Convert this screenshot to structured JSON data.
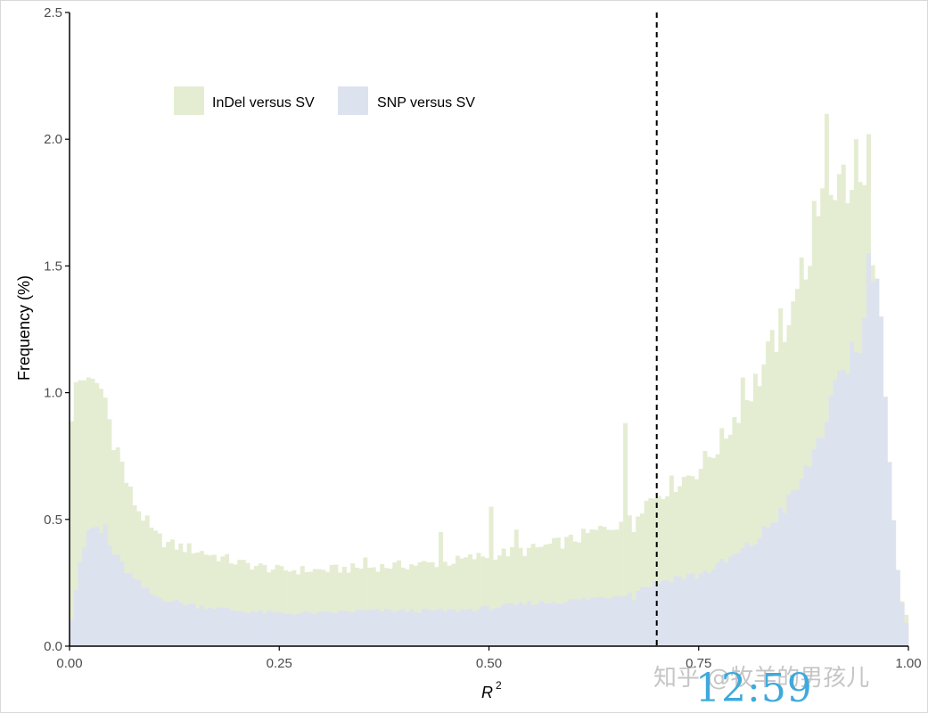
{
  "chart_data": {
    "type": "bar",
    "subtype": "overlaid-histogram",
    "title": "",
    "xlabel": "R",
    "xlabel_superscript": "2",
    "ylabel": "Frequency (%)",
    "xlim": [
      0,
      1
    ],
    "ylim": [
      0,
      2.5
    ],
    "xticks": [
      "0.00",
      "0.25",
      "0.50",
      "0.75",
      "1.00"
    ],
    "yticks": [
      "0.0",
      "0.5",
      "1.0",
      "1.5",
      "2.0",
      "2.5"
    ],
    "xtick_values": [
      0,
      0.25,
      0.5,
      0.75,
      1.0
    ],
    "ytick_values": [
      0,
      0.5,
      1.0,
      1.5,
      2.0,
      2.5
    ],
    "bin_width": 0.005,
    "cutoff_line": {
      "x": 0.7,
      "style": "dashed"
    },
    "grid": false,
    "legend_position": "top-left",
    "series": [
      {
        "name": "InDel versus SV",
        "color": "#e4edd2",
        "anchors": [
          [
            0.0,
            0.85
          ],
          [
            0.005,
            1.0
          ],
          [
            0.01,
            1.02
          ],
          [
            0.015,
            1.06
          ],
          [
            0.02,
            1.05
          ],
          [
            0.03,
            1.0
          ],
          [
            0.04,
            1.02
          ],
          [
            0.05,
            0.85
          ],
          [
            0.06,
            0.75
          ],
          [
            0.07,
            0.62
          ],
          [
            0.08,
            0.55
          ],
          [
            0.09,
            0.5
          ],
          [
            0.1,
            0.44
          ],
          [
            0.12,
            0.4
          ],
          [
            0.15,
            0.38
          ],
          [
            0.2,
            0.33
          ],
          [
            0.25,
            0.3
          ],
          [
            0.3,
            0.3
          ],
          [
            0.35,
            0.31
          ],
          [
            0.4,
            0.32
          ],
          [
            0.45,
            0.33
          ],
          [
            0.5,
            0.36
          ],
          [
            0.55,
            0.38
          ],
          [
            0.6,
            0.42
          ],
          [
            0.65,
            0.48
          ],
          [
            0.7,
            0.6
          ],
          [
            0.72,
            0.64
          ],
          [
            0.75,
            0.7
          ],
          [
            0.78,
            0.82
          ],
          [
            0.8,
            0.95
          ],
          [
            0.82,
            1.05
          ],
          [
            0.84,
            1.2
          ],
          [
            0.86,
            1.35
          ],
          [
            0.88,
            1.55
          ],
          [
            0.9,
            1.85
          ],
          [
            0.92,
            1.8
          ],
          [
            0.94,
            1.82
          ],
          [
            0.95,
            1.75
          ],
          [
            0.96,
            1.35
          ],
          [
            0.97,
            0.8
          ],
          [
            0.98,
            0.35
          ],
          [
            0.99,
            0.2
          ],
          [
            1.0,
            0.1
          ]
        ],
        "spikes": [
          [
            0.02,
            1.06
          ],
          [
            0.35,
            0.35
          ],
          [
            0.44,
            0.45
          ],
          [
            0.5,
            0.55
          ],
          [
            0.53,
            0.46
          ],
          [
            0.66,
            0.88
          ],
          [
            0.67,
            0.45
          ],
          [
            0.67,
            0.37
          ],
          [
            0.8,
            1.06
          ],
          [
            0.85,
            1.2
          ],
          [
            0.86,
            1.36
          ],
          [
            0.88,
            1.5
          ],
          [
            0.9,
            1.63
          ],
          [
            0.9,
            2.1
          ],
          [
            0.92,
            1.9
          ],
          [
            0.93,
            1.8
          ],
          [
            0.94,
            2.0
          ],
          [
            0.95,
            2.02
          ],
          [
            0.95,
            1.62
          ]
        ]
      },
      {
        "name": "SNP versus SV",
        "color": "#dde2ef",
        "anchors": [
          [
            0.0,
            0.05
          ],
          [
            0.005,
            0.17
          ],
          [
            0.01,
            0.3
          ],
          [
            0.015,
            0.38
          ],
          [
            0.02,
            0.42
          ],
          [
            0.03,
            0.48
          ],
          [
            0.04,
            0.43
          ],
          [
            0.05,
            0.38
          ],
          [
            0.06,
            0.33
          ],
          [
            0.08,
            0.25
          ],
          [
            0.1,
            0.2
          ],
          [
            0.12,
            0.18
          ],
          [
            0.15,
            0.16
          ],
          [
            0.2,
            0.14
          ],
          [
            0.25,
            0.13
          ],
          [
            0.3,
            0.13
          ],
          [
            0.35,
            0.14
          ],
          [
            0.4,
            0.14
          ],
          [
            0.45,
            0.14
          ],
          [
            0.5,
            0.15
          ],
          [
            0.55,
            0.17
          ],
          [
            0.6,
            0.18
          ],
          [
            0.65,
            0.2
          ],
          [
            0.7,
            0.25
          ],
          [
            0.72,
            0.27
          ],
          [
            0.75,
            0.28
          ],
          [
            0.78,
            0.33
          ],
          [
            0.8,
            0.37
          ],
          [
            0.82,
            0.42
          ],
          [
            0.84,
            0.5
          ],
          [
            0.86,
            0.58
          ],
          [
            0.88,
            0.7
          ],
          [
            0.9,
            0.88
          ],
          [
            0.92,
            1.05
          ],
          [
            0.94,
            1.15
          ],
          [
            0.95,
            1.3
          ],
          [
            0.96,
            1.4
          ],
          [
            0.97,
            1.2
          ],
          [
            0.98,
            0.6
          ],
          [
            0.99,
            0.2
          ],
          [
            1.0,
            0.05
          ]
        ],
        "spikes": [
          [
            0.04,
            0.48
          ],
          [
            0.66,
            0.2
          ],
          [
            0.67,
            0.18
          ],
          [
            0.91,
            1.05
          ],
          [
            0.93,
            1.2
          ],
          [
            0.95,
            1.55
          ],
          [
            0.96,
            1.45
          ]
        ]
      }
    ]
  },
  "watermark": {
    "text": "知乎 @牧羊的男孩儿",
    "time": "12:59"
  }
}
